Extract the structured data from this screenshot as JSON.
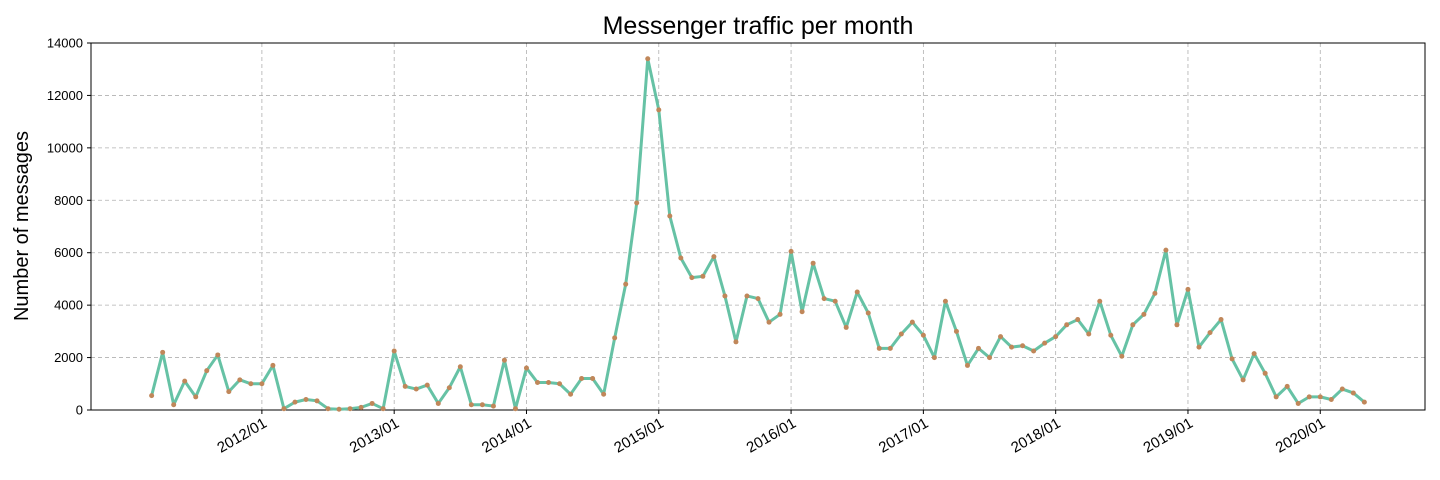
{
  "chart_data": {
    "type": "line",
    "title": "Messenger traffic per month",
    "ylabel": "Number of messages",
    "x": [
      "2011/03",
      "2011/04",
      "2011/05",
      "2011/06",
      "2011/07",
      "2011/08",
      "2011/09",
      "2011/10",
      "2011/11",
      "2011/12",
      "2012/01",
      "2012/02",
      "2012/03",
      "2012/04",
      "2012/05",
      "2012/06",
      "2012/07",
      "2012/08",
      "2012/09",
      "2012/10",
      "2012/11",
      "2012/12",
      "2013/01",
      "2013/02",
      "2013/03",
      "2013/04",
      "2013/05",
      "2013/06",
      "2013/07",
      "2013/08",
      "2013/09",
      "2013/10",
      "2013/11",
      "2013/12",
      "2014/01",
      "2014/02",
      "2014/03",
      "2014/04",
      "2014/05",
      "2014/06",
      "2014/07",
      "2014/08",
      "2014/09",
      "2014/10",
      "2014/11",
      "2014/12",
      "2015/01",
      "2015/02",
      "2015/03",
      "2015/04",
      "2015/05",
      "2015/06",
      "2015/07",
      "2015/08",
      "2015/09",
      "2015/10",
      "2015/11",
      "2015/12",
      "2016/01",
      "2016/02",
      "2016/03",
      "2016/04",
      "2016/05",
      "2016/06",
      "2016/07",
      "2016/08",
      "2016/09",
      "2016/10",
      "2016/11",
      "2016/12",
      "2017/01",
      "2017/02",
      "2017/03",
      "2017/04",
      "2017/05",
      "2017/06",
      "2017/07",
      "2017/08",
      "2017/09",
      "2017/10",
      "2017/11",
      "2017/12",
      "2018/01",
      "2018/02",
      "2018/03",
      "2018/04",
      "2018/05",
      "2018/06",
      "2018/07",
      "2018/08",
      "2018/09",
      "2018/10",
      "2018/11",
      "2018/12",
      "2019/01",
      "2019/02",
      "2019/03",
      "2019/04",
      "2019/05",
      "2019/06",
      "2019/07",
      "2019/08",
      "2019/09",
      "2019/10",
      "2019/11",
      "2019/12",
      "2020/01",
      "2020/02",
      "2020/03",
      "2020/04",
      "2020/05"
    ],
    "series": [
      {
        "color": "#66c2a5",
        "marker_color": "#c0875a",
        "values": [
          550,
          2200,
          200,
          1100,
          500,
          1500,
          2100,
          700,
          1150,
          1000,
          1000,
          1700,
          50,
          300,
          400,
          350,
          50,
          30,
          50,
          100,
          250,
          50,
          2250,
          900,
          800,
          950,
          250,
          850,
          1650,
          200,
          200,
          150,
          1900,
          50,
          1600,
          1050,
          1050,
          1000,
          600,
          1200,
          1200,
          600,
          2750,
          4800,
          7900,
          13400,
          11450,
          7400,
          5800,
          5050,
          5100,
          5850,
          4350,
          2600,
          4350,
          4250,
          3350,
          3650,
          6050,
          3750,
          5600,
          4250,
          4150,
          3150,
          4500,
          3700,
          2350,
          2350,
          2900,
          3350,
          2850,
          2000,
          4150,
          3000,
          1700,
          2350,
          2000,
          2800,
          2400,
          2450,
          2250,
          2550,
          2800,
          3250,
          3450,
          2900,
          4150,
          2850,
          2050,
          3250,
          3650,
          4450,
          6100,
          3250,
          4600,
          2400,
          2950,
          3450,
          1950,
          1150,
          2150,
          1400,
          500,
          900,
          250,
          500,
          500,
          400,
          800,
          650,
          300
        ]
      }
    ],
    "xticks": [
      "2012/01",
      "2013/01",
      "2014/01",
      "2015/01",
      "2016/01",
      "2017/01",
      "2018/01",
      "2019/01",
      "2020/01"
    ],
    "ylim": [
      0,
      14000
    ],
    "yticks": [
      0,
      2000,
      4000,
      6000,
      8000,
      10000,
      12000,
      14000
    ],
    "grid": true
  }
}
